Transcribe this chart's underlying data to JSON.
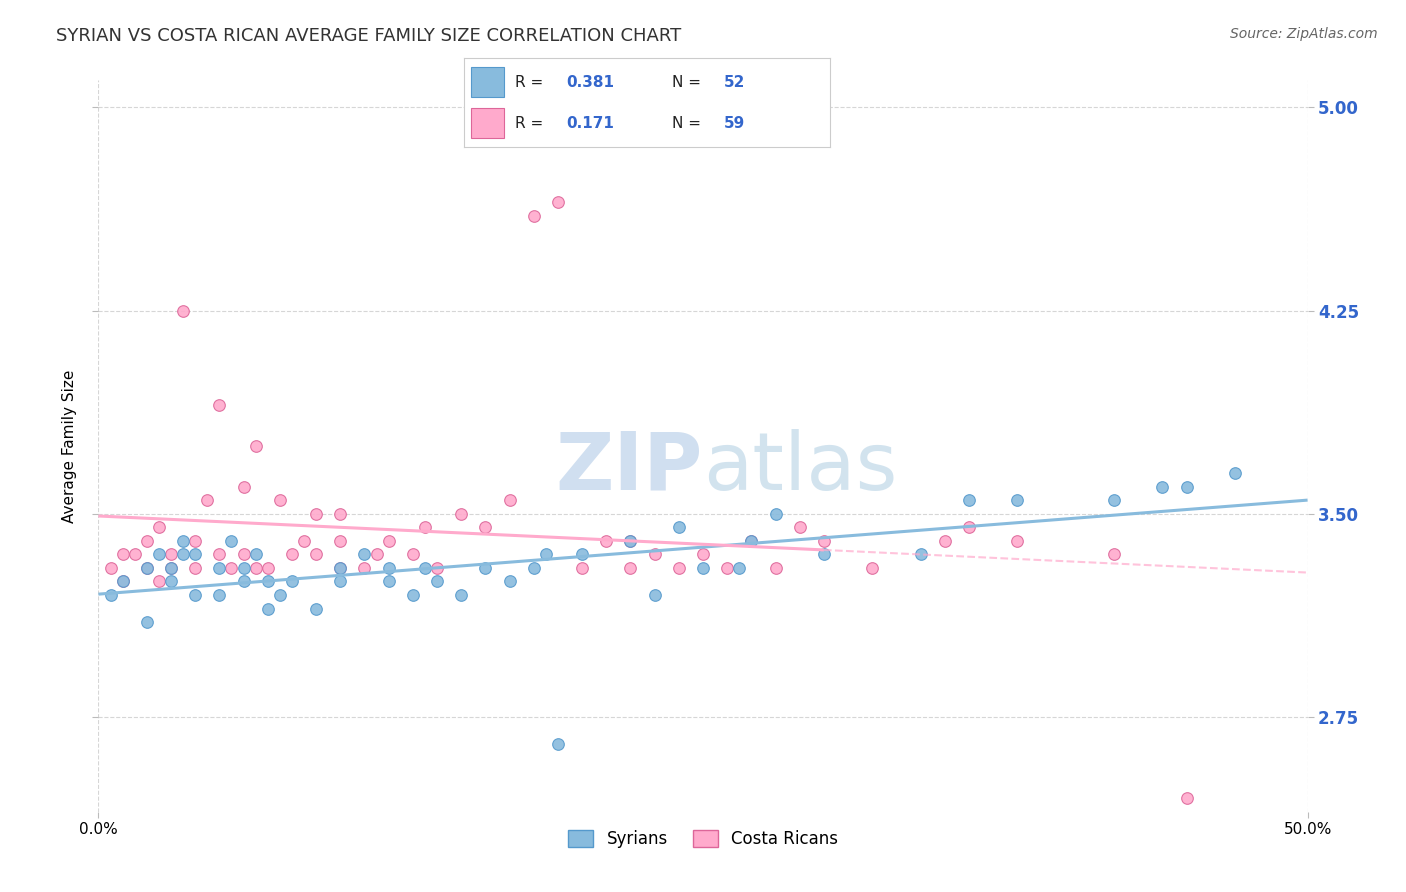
{
  "title": "SYRIAN VS COSTA RICAN AVERAGE FAMILY SIZE CORRELATION CHART",
  "source_text": "Source: ZipAtlas.com",
  "ylabel": "Average Family Size",
  "xlim": [
    0.0,
    0.5
  ],
  "ylim": [
    2.4,
    5.1
  ],
  "yticks": [
    2.75,
    3.5,
    4.25,
    5.0
  ],
  "xticks": [
    0.0,
    0.5
  ],
  "xticklabels": [
    "0.0%",
    "50.0%"
  ],
  "yticklabels_right": [
    "2.75",
    "3.50",
    "4.25",
    "5.00"
  ],
  "syrian_color": "#88bbdd",
  "syrian_edge": "#5599cc",
  "costa_rican_color": "#ffaacc",
  "costa_rican_edge": "#dd6699",
  "legend_R_color": "#3366cc",
  "watermark_color": "#d0dff0",
  "background_color": "#ffffff",
  "grid_color": "#bbbbbb",
  "title_fontsize": 13,
  "axis_label_fontsize": 11,
  "tick_label_color_right": "#3366cc",
  "syrian_scatter_x": [
    0.005,
    0.01,
    0.02,
    0.02,
    0.025,
    0.03,
    0.03,
    0.035,
    0.035,
    0.04,
    0.04,
    0.05,
    0.05,
    0.055,
    0.06,
    0.06,
    0.065,
    0.07,
    0.07,
    0.075,
    0.08,
    0.09,
    0.1,
    0.1,
    0.11,
    0.12,
    0.12,
    0.13,
    0.135,
    0.14,
    0.15,
    0.16,
    0.17,
    0.18,
    0.185,
    0.19,
    0.2,
    0.22,
    0.23,
    0.24,
    0.25,
    0.265,
    0.27,
    0.28,
    0.3,
    0.34,
    0.36,
    0.38,
    0.42,
    0.44,
    0.45,
    0.47
  ],
  "syrian_scatter_y": [
    3.2,
    3.25,
    3.3,
    3.1,
    3.35,
    3.3,
    3.25,
    3.35,
    3.4,
    3.2,
    3.35,
    3.3,
    3.2,
    3.4,
    3.25,
    3.3,
    3.35,
    3.15,
    3.25,
    3.2,
    3.25,
    3.15,
    3.3,
    3.25,
    3.35,
    3.25,
    3.3,
    3.2,
    3.3,
    3.25,
    3.2,
    3.3,
    3.25,
    3.3,
    3.35,
    2.65,
    3.35,
    3.4,
    3.2,
    3.45,
    3.3,
    3.3,
    3.4,
    3.5,
    3.35,
    3.35,
    3.55,
    3.55,
    3.55,
    3.6,
    3.6,
    3.65
  ],
  "costa_rican_scatter_x": [
    0.005,
    0.01,
    0.01,
    0.015,
    0.02,
    0.02,
    0.025,
    0.025,
    0.03,
    0.03,
    0.035,
    0.04,
    0.04,
    0.045,
    0.05,
    0.05,
    0.055,
    0.06,
    0.06,
    0.065,
    0.065,
    0.07,
    0.075,
    0.08,
    0.085,
    0.09,
    0.09,
    0.1,
    0.1,
    0.1,
    0.11,
    0.115,
    0.12,
    0.13,
    0.135,
    0.14,
    0.15,
    0.16,
    0.17,
    0.18,
    0.19,
    0.2,
    0.21,
    0.22,
    0.22,
    0.23,
    0.24,
    0.25,
    0.26,
    0.27,
    0.28,
    0.29,
    0.3,
    0.32,
    0.35,
    0.36,
    0.38,
    0.42,
    0.45
  ],
  "costa_rican_scatter_y": [
    3.3,
    3.35,
    3.25,
    3.35,
    3.3,
    3.4,
    3.25,
    3.45,
    3.3,
    3.35,
    4.25,
    3.3,
    3.4,
    3.55,
    3.35,
    3.9,
    3.3,
    3.35,
    3.6,
    3.3,
    3.75,
    3.3,
    3.55,
    3.35,
    3.4,
    3.35,
    3.5,
    3.3,
    3.4,
    3.5,
    3.3,
    3.35,
    3.4,
    3.35,
    3.45,
    3.3,
    3.5,
    3.45,
    3.55,
    4.6,
    4.65,
    3.3,
    3.4,
    3.4,
    3.3,
    3.35,
    3.3,
    3.35,
    3.3,
    3.4,
    3.3,
    3.45,
    3.4,
    3.3,
    3.4,
    3.45,
    3.4,
    3.35,
    2.45
  ]
}
